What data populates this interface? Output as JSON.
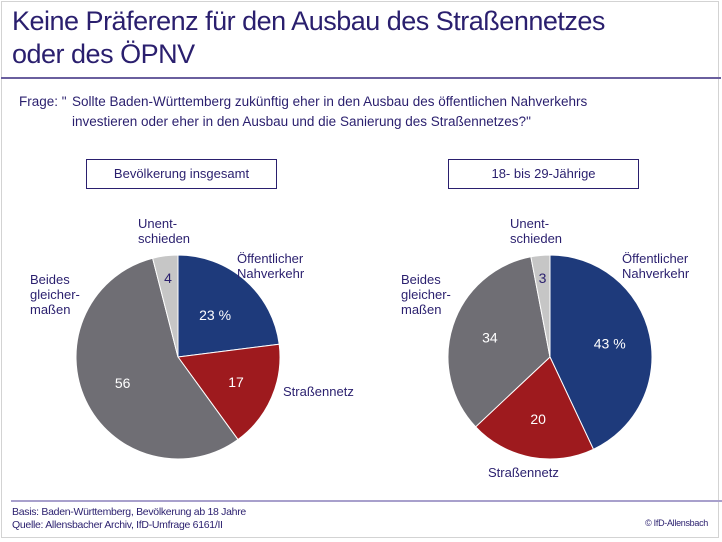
{
  "title_line1": "Keine Präferenz für den Ausbau des Straßennetzes",
  "title_line2": "oder des ÖPNV",
  "question_label": "Frage: \"",
  "question_text": "Sollte Baden-Württemberg zukünftig eher in den Ausbau des öffentlichen Nahverkehrs investieren oder eher in den Ausbau und die Sanierung des Straßennetzes?\"",
  "footer": {
    "basis": "Basis: Baden-Württemberg, Bevölkerung ab 18 Jahre",
    "source": "Quelle: Allensbacher Archiv, IfD-Umfrage 6161/II",
    "copyright": "© IfD-Allensbach"
  },
  "colors": {
    "oepnv": "#1e3a7b",
    "strassennetz": "#9e1a1e",
    "beides": "#6f6e74",
    "unentschieden": "#c6c6c6",
    "text": "#2a1f6e"
  },
  "chart_data": [
    {
      "type": "pie",
      "title": "Bevölkerung insgesamt",
      "unit": "%",
      "categories": [
        "Öffentlicher Nahverkehr",
        "Straßennetz",
        "Beides gleichermaßen",
        "Unentschieden"
      ],
      "values": [
        23,
        17,
        56,
        4
      ],
      "value_labels": [
        "23 %",
        "17",
        "56",
        "4"
      ],
      "category_labels": {
        "oepnv": [
          "Öffentlicher",
          "Nahverkehr"
        ],
        "strassennetz": [
          "Straßennetz"
        ],
        "beides": [
          "Beides",
          "gleicher-",
          "maßen"
        ],
        "unentschieden": [
          "Unent-",
          "schieden"
        ]
      },
      "start_angle": "12 o'clock, clockwise"
    },
    {
      "type": "pie",
      "title": "18- bis 29-Jährige",
      "unit": "%",
      "categories": [
        "Öffentlicher Nahverkehr",
        "Straßennetz",
        "Beides gleichermaßen",
        "Unentschieden"
      ],
      "values": [
        43,
        20,
        34,
        3
      ],
      "value_labels": [
        "43 %",
        "20",
        "34",
        "3"
      ],
      "category_labels": {
        "oepnv": [
          "Öffentlicher",
          "Nahverkehr"
        ],
        "strassennetz": [
          "Straßennetz"
        ],
        "beides": [
          "Beides",
          "gleicher-",
          "maßen"
        ],
        "unentschieden": [
          "Unent-",
          "schieden"
        ]
      },
      "start_angle": "12 o'clock, clockwise"
    }
  ]
}
